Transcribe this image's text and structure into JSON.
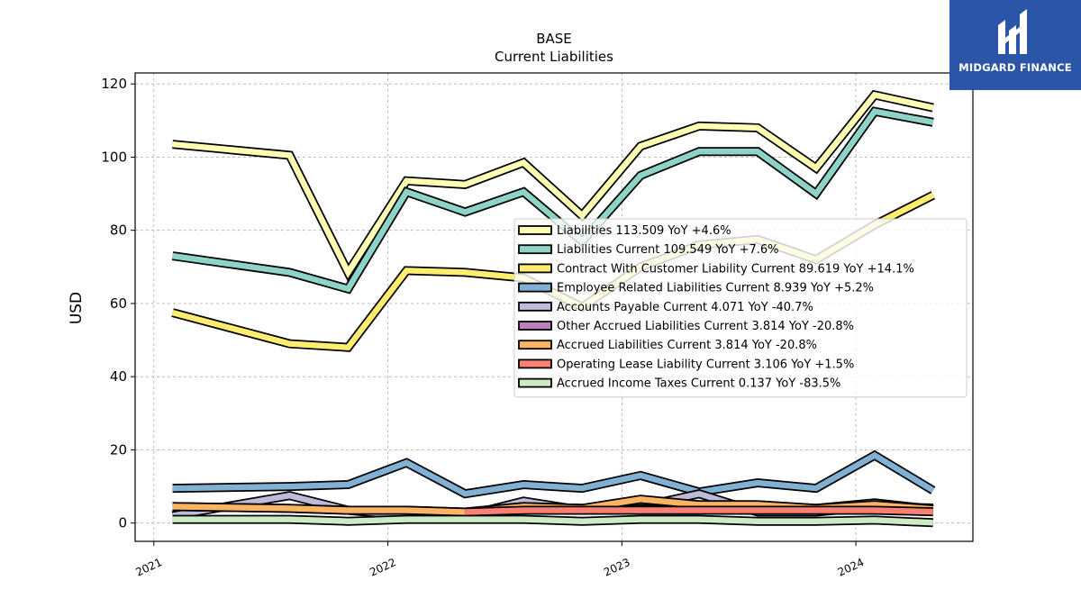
{
  "chart_data": {
    "type": "area",
    "title": "BASE",
    "subtitle": "Current  Liabilities",
    "ylabel": "USD",
    "xlabel": "",
    "ylim": [
      -5,
      123
    ],
    "xlim": [
      2020.92,
      2024.5
    ],
    "yticks": [
      0,
      20,
      40,
      60,
      80,
      100,
      120
    ],
    "xticks": [
      {
        "value": 2021,
        "label": "2021"
      },
      {
        "value": 2022,
        "label": "2022"
      },
      {
        "value": 2023,
        "label": "2023"
      },
      {
        "value": 2024,
        "label": "2024"
      }
    ],
    "grid": true,
    "legend_position": "right",
    "x": [
      2021.08,
      2021.58,
      2021.83,
      2022.08,
      2022.33,
      2022.58,
      2022.83,
      2023.08,
      2023.33,
      2023.58,
      2023.83,
      2024.08,
      2024.33
    ],
    "series": [
      {
        "name": "Liabilities",
        "legend": "Liabilities  113.509 YoY +4.6%",
        "color": "#ffffb3",
        "values": [
          103.5,
          100.5,
          68.5,
          93.5,
          92.5,
          98.5,
          84.0,
          103.0,
          108.5,
          108.0,
          97.0,
          117.0,
          113.5
        ]
      },
      {
        "name": "Liabilities Current",
        "legend": "Liabilities Current  109.549 YoY +7.6%",
        "color": "#8dd3c7",
        "values": [
          73.0,
          68.5,
          64.0,
          90.5,
          85.0,
          90.5,
          77.0,
          95.0,
          101.5,
          101.5,
          90.0,
          112.5,
          109.5
        ]
      },
      {
        "name": "Contract With Customer Liability Current",
        "legend": "Contract With Customer Liability Current  89.619 YoY +14.1%",
        "color": "#ffed6f",
        "values": [
          57.5,
          49.0,
          48.0,
          69.0,
          68.5,
          67.0,
          59.0,
          70.0,
          76.0,
          77.5,
          72.0,
          81.5,
          89.6
        ]
      },
      {
        "name": "Employee Related Liabilities Current",
        "legend": "Employee Related Liabilities Current  8.939 YoY +5.2%",
        "color": "#80b1d3",
        "values": [
          9.5,
          10.0,
          10.5,
          16.5,
          8.0,
          10.5,
          9.5,
          13.0,
          8.5,
          11.0,
          9.5,
          18.5,
          8.9
        ]
      },
      {
        "name": "Accounts Payable Current",
        "legend": "Accounts Payable Current  4.071 YoY -40.7%",
        "color": "#bebada",
        "values": [
          2.0,
          7.5,
          3.5,
          2.0,
          2.0,
          6.0,
          3.5,
          4.5,
          8.0,
          3.0,
          3.0,
          4.5,
          4.1
        ]
      },
      {
        "name": "Other Accrued Liabilities Current",
        "legend": "Other Accrued Liabilities Current  3.814 YoY -20.8%",
        "color": "#bc80bd",
        "values": [
          4.5,
          4.0,
          3.5,
          3.5,
          3.0,
          4.5,
          4.0,
          6.0,
          5.0,
          5.0,
          4.0,
          5.5,
          3.8
        ]
      },
      {
        "name": "Accrued Liabilities Current",
        "legend": "Accrued Liabilities Current  3.814 YoY -20.8%",
        "color": "#fdb462",
        "values": [
          4.5,
          4.0,
          3.5,
          3.5,
          3.0,
          4.5,
          4.0,
          6.5,
          5.0,
          5.0,
          4.0,
          5.0,
          3.8
        ]
      },
      {
        "name": "Operating Lease Liability Current",
        "legend": "Operating Lease Liability Current  3.106 YoY +1.5%",
        "color": "#fb8072",
        "values": [
          null,
          null,
          null,
          null,
          3.0,
          3.5,
          3.5,
          3.5,
          3.5,
          3.5,
          3.5,
          3.5,
          3.1
        ]
      },
      {
        "name": "Accrued Income Taxes Current",
        "legend": "Accrued Income Taxes Current  0.137 YoY -83.5%",
        "color": "#ccebc5",
        "values": [
          1.0,
          1.0,
          0.5,
          1.0,
          1.0,
          1.0,
          0.5,
          1.0,
          1.0,
          0.5,
          0.5,
          0.8,
          0.1
        ]
      }
    ]
  },
  "logo": {
    "text": "MIDGARD FINANCE",
    "color": "#2b56a8"
  }
}
